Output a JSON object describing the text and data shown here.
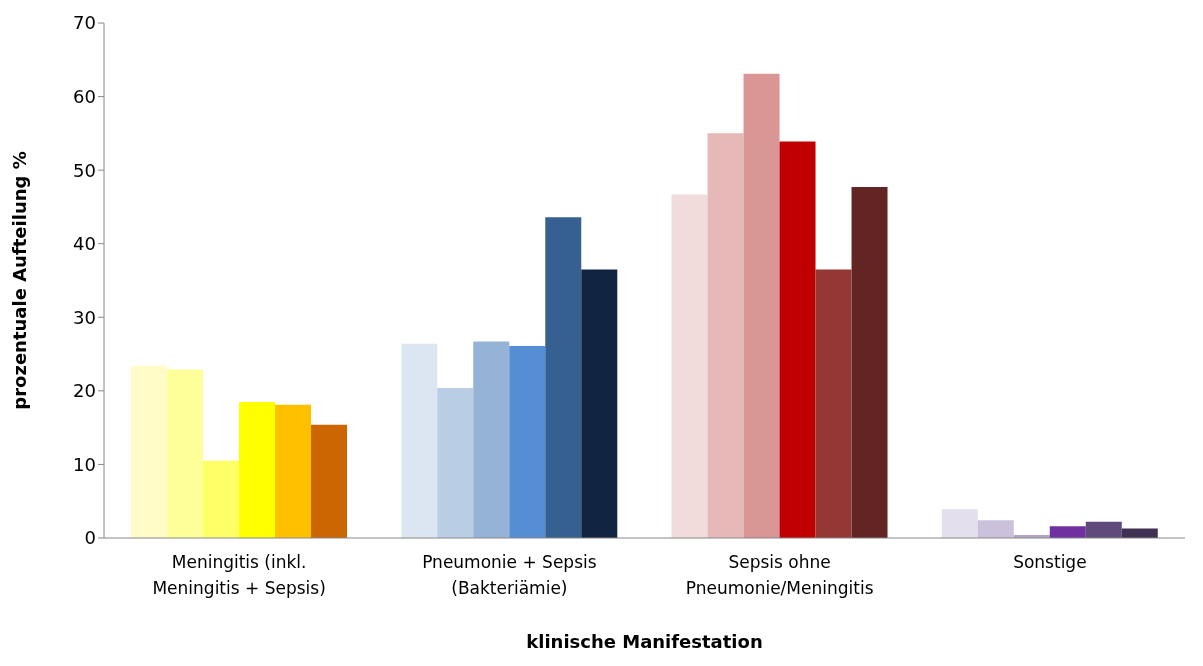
{
  "chart_data": {
    "type": "bar",
    "xlabel": "klinische Manifestation",
    "ylabel": "prozentuale Aufteilung %",
    "categories": [
      "Meningitis (inkl.\nMeningitis + Sepsis)",
      "Pneumonie + Sepsis\n(Bakteriämie)",
      "Sepsis ohne\nPneumonie/Meningitis",
      "Sonstige"
    ],
    "series": [
      {
        "colors": [
          "#fffcc8",
          "#dce6f2",
          "#f2dcdb",
          "#e4dfec"
        ],
        "values": [
          23.4,
          26.4,
          46.7,
          3.9
        ]
      },
      {
        "colors": [
          "#ffff99",
          "#b9cde5",
          "#e6b9b8",
          "#ccc1da"
        ],
        "values": [
          22.9,
          20.4,
          55.0,
          2.4
        ]
      },
      {
        "colors": [
          "#ffff66",
          "#95b3d7",
          "#d99694",
          "#b3a2c7"
        ],
        "values": [
          10.5,
          26.7,
          63.1,
          0.4
        ]
      },
      {
        "colors": [
          "#ffff00",
          "#558ed5",
          "#c00000",
          "#7030a0"
        ],
        "values": [
          18.5,
          26.1,
          53.9,
          1.6
        ]
      },
      {
        "colors": [
          "#ffc000",
          "#376092",
          "#953735",
          "#604a7b"
        ],
        "values": [
          18.1,
          43.6,
          36.5,
          2.2
        ]
      },
      {
        "colors": [
          "#cc6600",
          "#10243f",
          "#632523",
          "#403152"
        ],
        "values": [
          15.4,
          36.5,
          47.7,
          1.3
        ]
      }
    ],
    "ylim": [
      0,
      70
    ],
    "yticks": [
      0,
      10,
      20,
      30,
      40,
      50,
      60,
      70
    ],
    "grid": false,
    "legend": false
  }
}
